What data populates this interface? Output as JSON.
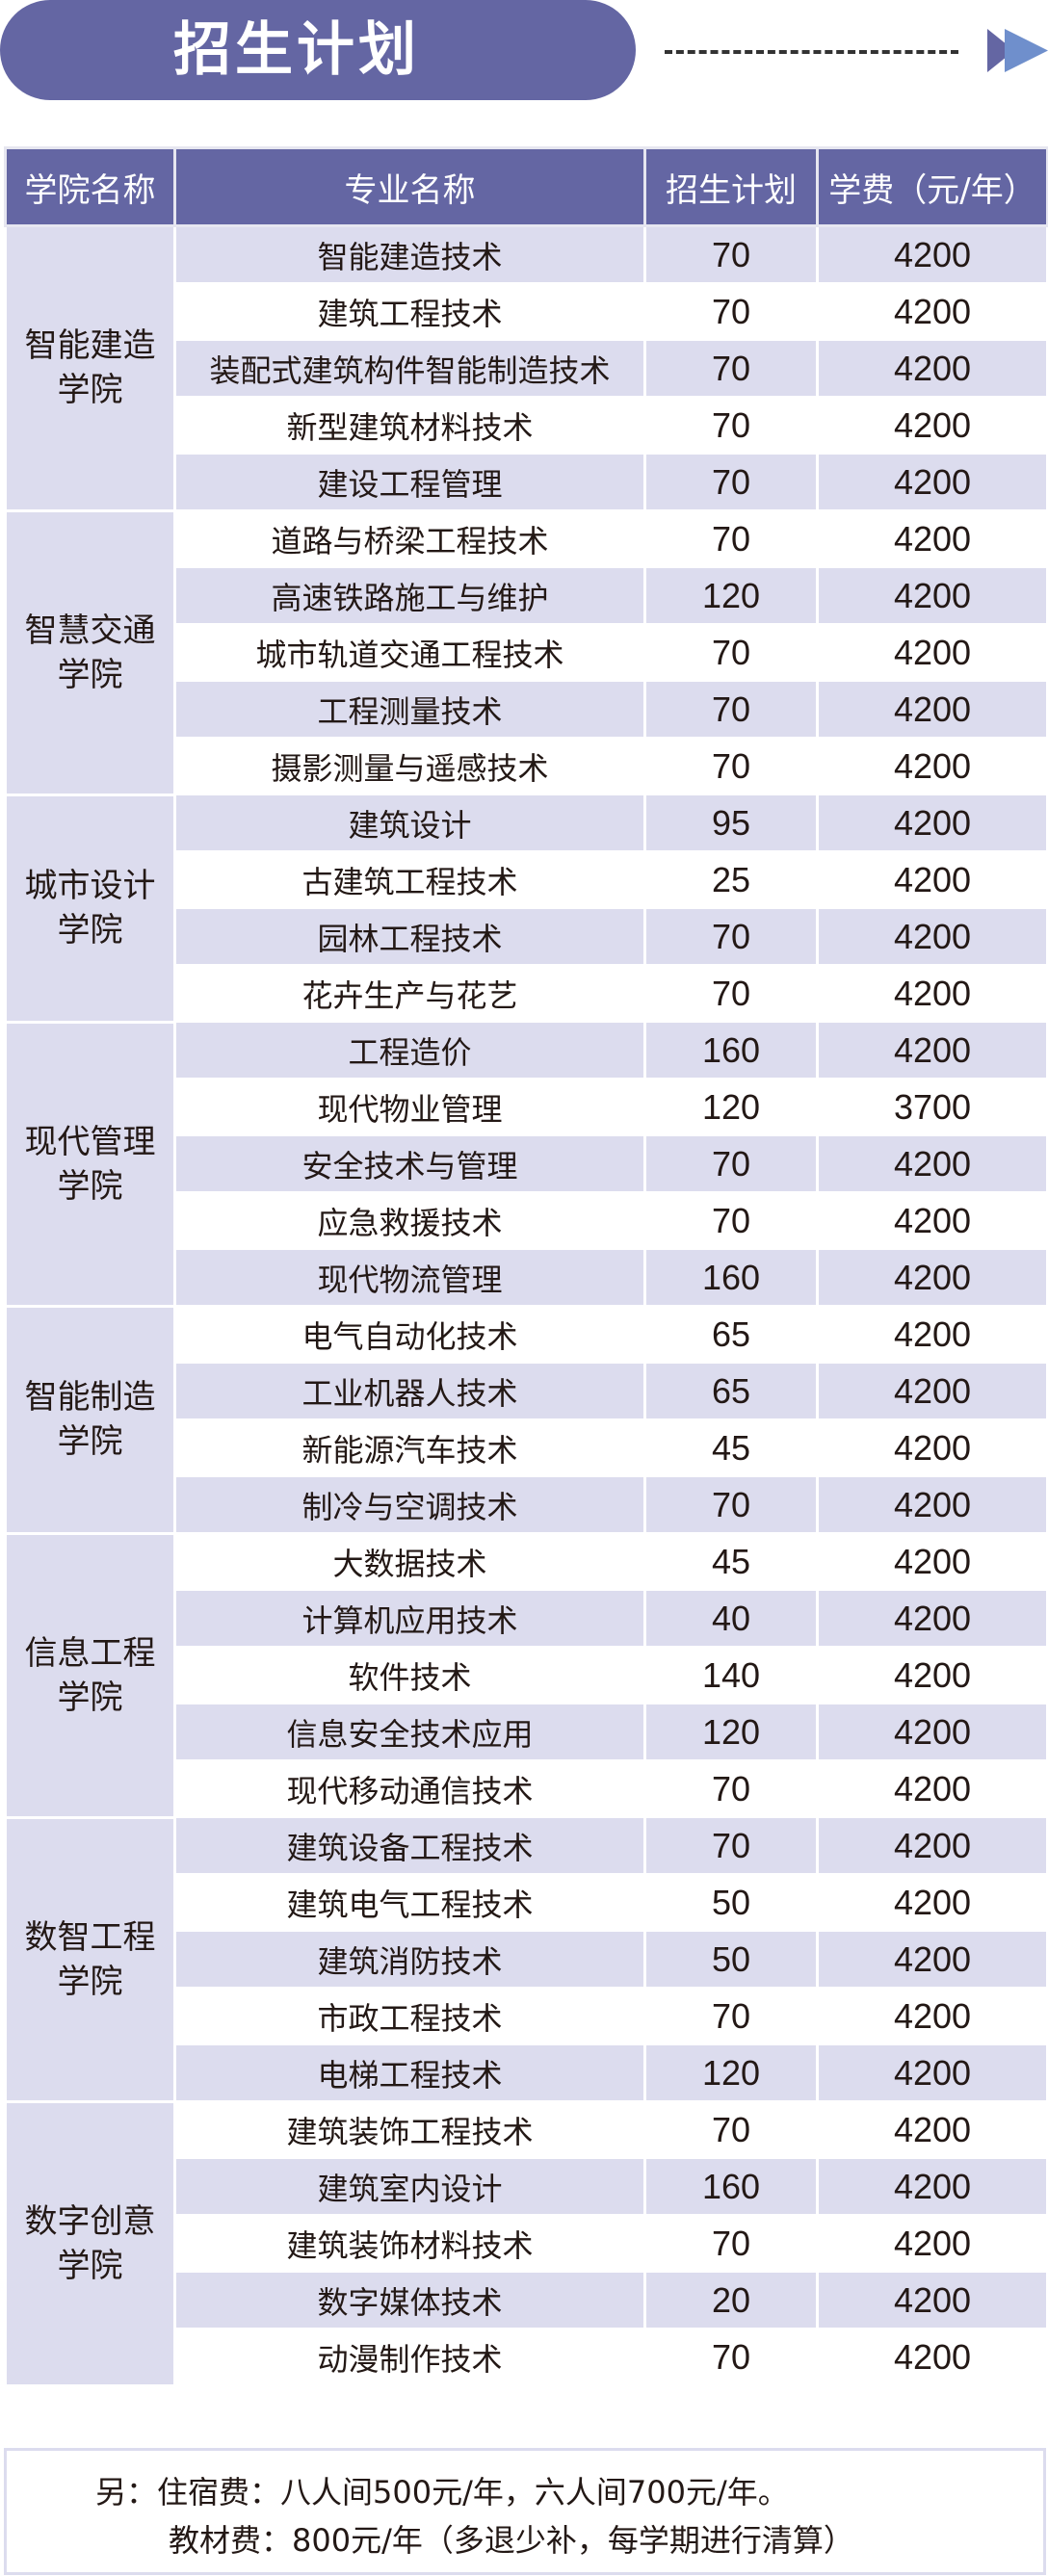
{
  "banner": {
    "title": "招生计划"
  },
  "colors": {
    "header": "#6466a3",
    "stripe": "#dcdcee",
    "arrow_dark": "#6466a3",
    "arrow_light": "#6f8fcc"
  },
  "table": {
    "headers": [
      "学院名称",
      "专业名称",
      "招生计划",
      "学费（元/年）"
    ],
    "groups": [
      {
        "college": "智能建造学院",
        "rows": [
          [
            "智能建造技术",
            "70",
            "4200"
          ],
          [
            "建筑工程技术",
            "70",
            "4200"
          ],
          [
            "装配式建筑构件智能制造技术",
            "70",
            "4200"
          ],
          [
            "新型建筑材料技术",
            "70",
            "4200"
          ],
          [
            "建设工程管理",
            "70",
            "4200"
          ]
        ]
      },
      {
        "college": "智慧交通学院",
        "rows": [
          [
            "道路与桥梁工程技术",
            "70",
            "4200"
          ],
          [
            "高速铁路施工与维护",
            "120",
            "4200"
          ],
          [
            "城市轨道交通工程技术",
            "70",
            "4200"
          ],
          [
            "工程测量技术",
            "70",
            "4200"
          ],
          [
            "摄影测量与遥感技术",
            "70",
            "4200"
          ]
        ]
      },
      {
        "college": "城市设计学院",
        "rows": [
          [
            "建筑设计",
            "95",
            "4200"
          ],
          [
            "古建筑工程技术",
            "25",
            "4200"
          ],
          [
            "园林工程技术",
            "70",
            "4200"
          ],
          [
            "花卉生产与花艺",
            "70",
            "4200"
          ]
        ]
      },
      {
        "college": "现代管理学院",
        "rows": [
          [
            "工程造价",
            "160",
            "4200"
          ],
          [
            "现代物业管理",
            "120",
            "3700"
          ],
          [
            "安全技术与管理",
            "70",
            "4200"
          ],
          [
            "应急救援技术",
            "70",
            "4200"
          ],
          [
            "现代物流管理",
            "160",
            "4200"
          ]
        ]
      },
      {
        "college": "智能制造学院",
        "rows": [
          [
            "电气自动化技术",
            "65",
            "4200"
          ],
          [
            "工业机器人技术",
            "65",
            "4200"
          ],
          [
            "新能源汽车技术",
            "45",
            "4200"
          ],
          [
            "制冷与空调技术",
            "70",
            "4200"
          ]
        ]
      },
      {
        "college": "信息工程学院",
        "rows": [
          [
            "大数据技术",
            "45",
            "4200"
          ],
          [
            "计算机应用技术",
            "40",
            "4200"
          ],
          [
            "软件技术",
            "140",
            "4200"
          ],
          [
            "信息安全技术应用",
            "120",
            "4200"
          ],
          [
            "现代移动通信技术",
            "70",
            "4200"
          ]
        ]
      },
      {
        "college": "数智工程学院",
        "rows": [
          [
            "建筑设备工程技术",
            "70",
            "4200"
          ],
          [
            "建筑电气工程技术",
            "50",
            "4200"
          ],
          [
            "建筑消防技术",
            "50",
            "4200"
          ],
          [
            "市政工程技术",
            "70",
            "4200"
          ],
          [
            "电梯工程技术",
            "120",
            "4200"
          ]
        ]
      },
      {
        "college": "数字创意学院",
        "rows": [
          [
            "建筑装饰工程技术",
            "70",
            "4200"
          ],
          [
            "建筑室内设计",
            "160",
            "4200"
          ],
          [
            "建筑装饰材料技术",
            "70",
            "4200"
          ],
          [
            "数字媒体技术",
            "20",
            "4200"
          ],
          [
            "动漫制作技术",
            "70",
            "4200"
          ]
        ]
      }
    ]
  },
  "footer": {
    "line1": "另：住宿费：八人间500元/年，六人间700元/年。",
    "line2": "教材费：800元/年（多退少补，每学期进行清算）"
  }
}
